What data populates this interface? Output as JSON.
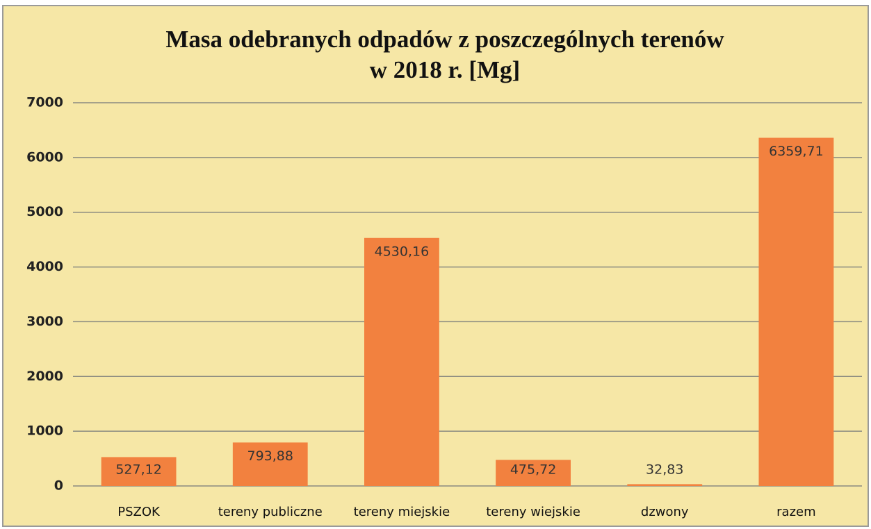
{
  "chart_data": {
    "type": "bar",
    "title": [
      "Masa odebranych odpadów z poszczególnych terenów",
      "w 2018 r. [Mg]"
    ],
    "categories": [
      "PSZOK",
      "tereny publiczne",
      "tereny miejskie",
      "tereny wiejskie",
      "dzwony",
      "razem"
    ],
    "values": [
      527.12,
      793.88,
      4530.16,
      475.72,
      32.83,
      6359.71
    ],
    "value_labels": [
      "527,12",
      "793,88",
      "4530,16",
      "475,72",
      "32,83",
      "6359,71"
    ],
    "color": "#f2813f",
    "ylim": [
      0,
      7000
    ],
    "yticks": [
      0,
      1000,
      2000,
      3000,
      4000,
      5000,
      6000,
      7000
    ],
    "grid": true
  }
}
